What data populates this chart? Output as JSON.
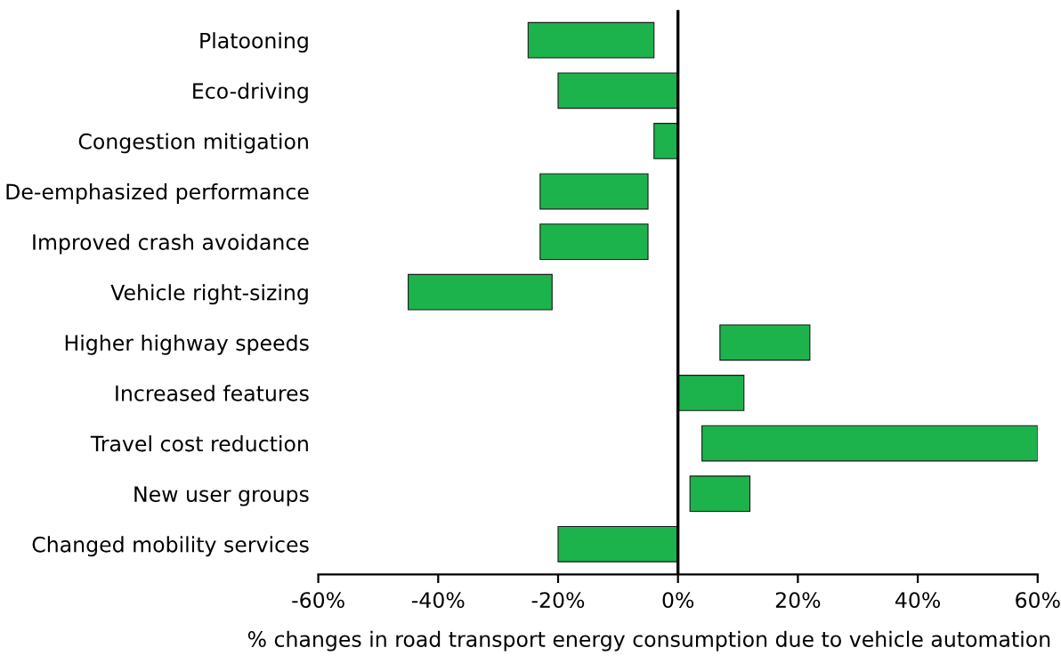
{
  "chart_data": {
    "type": "bar",
    "orientation": "horizontal",
    "xlabel": "% changes in road transport energy consumption due to vehicle automation",
    "categories": [
      "Platooning",
      "Eco-driving",
      "Congestion mitigation",
      "De-emphasized performance",
      "Improved crash avoidance",
      "Vehicle right-sizing",
      "Higher highway speeds",
      "Increased features",
      "Travel cost reduction",
      "New user groups",
      "Changed mobility services"
    ],
    "base": [
      -25,
      -20,
      -4,
      -23,
      -23,
      -45,
      7,
      0,
      4,
      2,
      -20
    ],
    "values": [
      21,
      20,
      4,
      18,
      18,
      24,
      15,
      11,
      56,
      10,
      20
    ],
    "color": "#1db34c",
    "xlim": [
      -60,
      60
    ],
    "xticks": [
      {
        "value": -60,
        "label": "-60%"
      },
      {
        "value": -40,
        "label": "-40%"
      },
      {
        "value": -20,
        "label": "-20%"
      },
      {
        "value": 0,
        "label": "0%"
      },
      {
        "value": 20,
        "label": "20%"
      },
      {
        "value": 40,
        "label": "40%"
      },
      {
        "value": 60,
        "label": "60%"
      }
    ],
    "ref_lines": [
      {
        "axis": "x",
        "value": 0,
        "color": "#000000"
      }
    ],
    "grid": false,
    "legend": false
  }
}
